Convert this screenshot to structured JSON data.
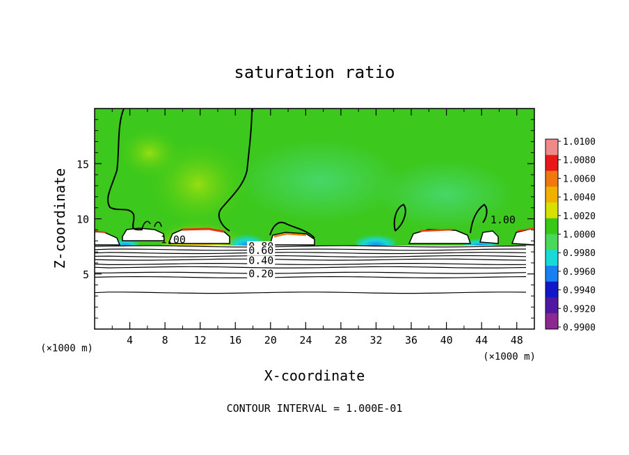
{
  "chart_data": {
    "type": "heatmap",
    "title": "saturation ratio",
    "xlabel": "X-coordinate",
    "ylabel": "Z-coordinate",
    "x_unit": "(×1000 m)",
    "y_unit": "(×1000 m)",
    "footer": "CONTOUR INTERVAL = 1.000E-01",
    "xlim": [
      0,
      50
    ],
    "ylim": [
      0,
      20
    ],
    "x_ticks": [
      4,
      8,
      12,
      16,
      20,
      24,
      28,
      32,
      36,
      40,
      44,
      48
    ],
    "y_ticks": [
      5,
      10,
      15
    ],
    "colorbar": {
      "levels": [
        "1.0100",
        "1.0080",
        "1.0060",
        "1.0040",
        "1.0020",
        "1.0000",
        "0.9980",
        "0.9960",
        "0.9940",
        "0.9920",
        "0.9900"
      ],
      "colors": [
        "#f08a8a",
        "#e81818",
        "#f07810",
        "#f0b000",
        "#d8e000",
        "#38c818",
        "#4ad858",
        "#18d8d8",
        "#1880f0",
        "#1018c8",
        "#5018a0",
        "#8c2890"
      ]
    },
    "contour_labels": [
      {
        "text": "1.00",
        "x": 7.5,
        "z": 7.8
      },
      {
        "text": "1.00",
        "x": 45,
        "z": 9.6
      },
      {
        "text": "0.80",
        "x": 17.5,
        "z": 7.2
      },
      {
        "text": "0.60",
        "x": 17.5,
        "z": 6.8
      },
      {
        "text": "0.40",
        "x": 17.5,
        "z": 5.9
      },
      {
        "text": "0.20",
        "x": 17.5,
        "z": 4.7
      }
    ],
    "contour_lines_z": [
      7.5,
      7.2,
      6.9,
      6.6,
      6.3,
      5.9,
      5.6,
      5.1,
      4.7,
      3.3
    ],
    "boundary_layer_top_z": 7.6,
    "background_value": 1.0
  }
}
